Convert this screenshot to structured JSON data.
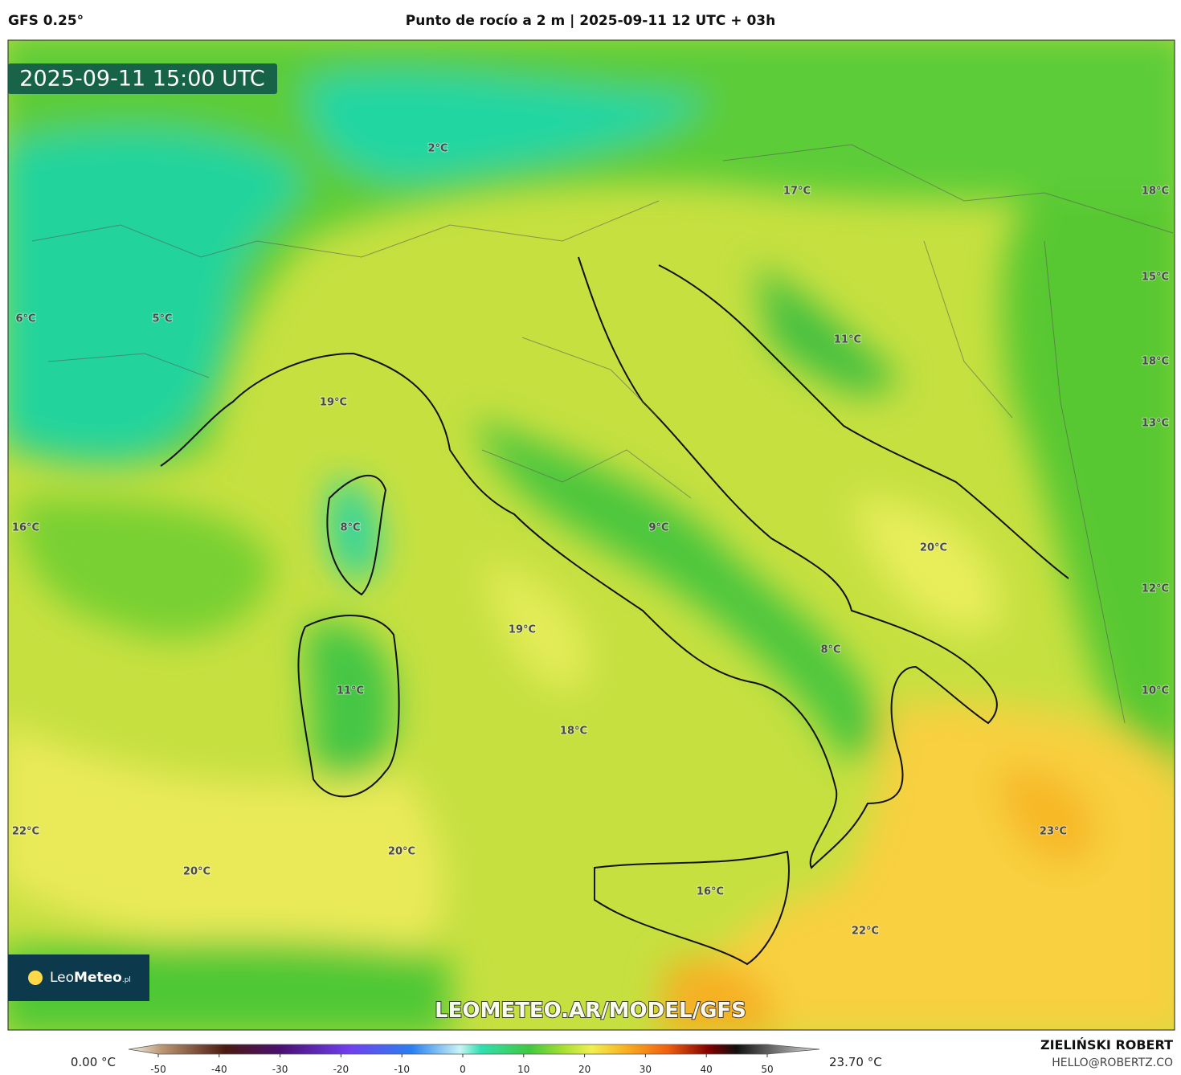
{
  "header": {
    "model": "GFS 0.25°",
    "title": "Punto de rocío a 2 m | 2025-09-11 12 UTC + 03h"
  },
  "timestamp": "2025-09-11 15:00 UTC",
  "map_labels": [
    "2°C",
    "17°C",
    "18°C",
    "15°C",
    "6°C",
    "5°C",
    "11°C",
    "18°C",
    "19°C",
    "13°C",
    "16°C",
    "8°C",
    "9°C",
    "20°C",
    "12°C",
    "19°C",
    "8°C",
    "11°C",
    "10°C",
    "18°C",
    "22°C",
    "23°C",
    "20°C",
    "20°C",
    "16°C",
    "22°C"
  ],
  "logo": {
    "brand_light": "Leo",
    "brand_bold": "Meteo",
    "suffix": ".pl"
  },
  "watermark": "LEOMETEO.AR/MODEL/GFS",
  "colorbar": {
    "min_label": "0.00 °C",
    "max_label": "23.70 °C",
    "ticks": [
      -50,
      -40,
      -30,
      -20,
      -10,
      0,
      10,
      20,
      30,
      40,
      50
    ]
  },
  "credit": {
    "author": "ZIELIŃSKI ROBERT",
    "email": "HELLO@ROBERTZ.CO"
  }
}
